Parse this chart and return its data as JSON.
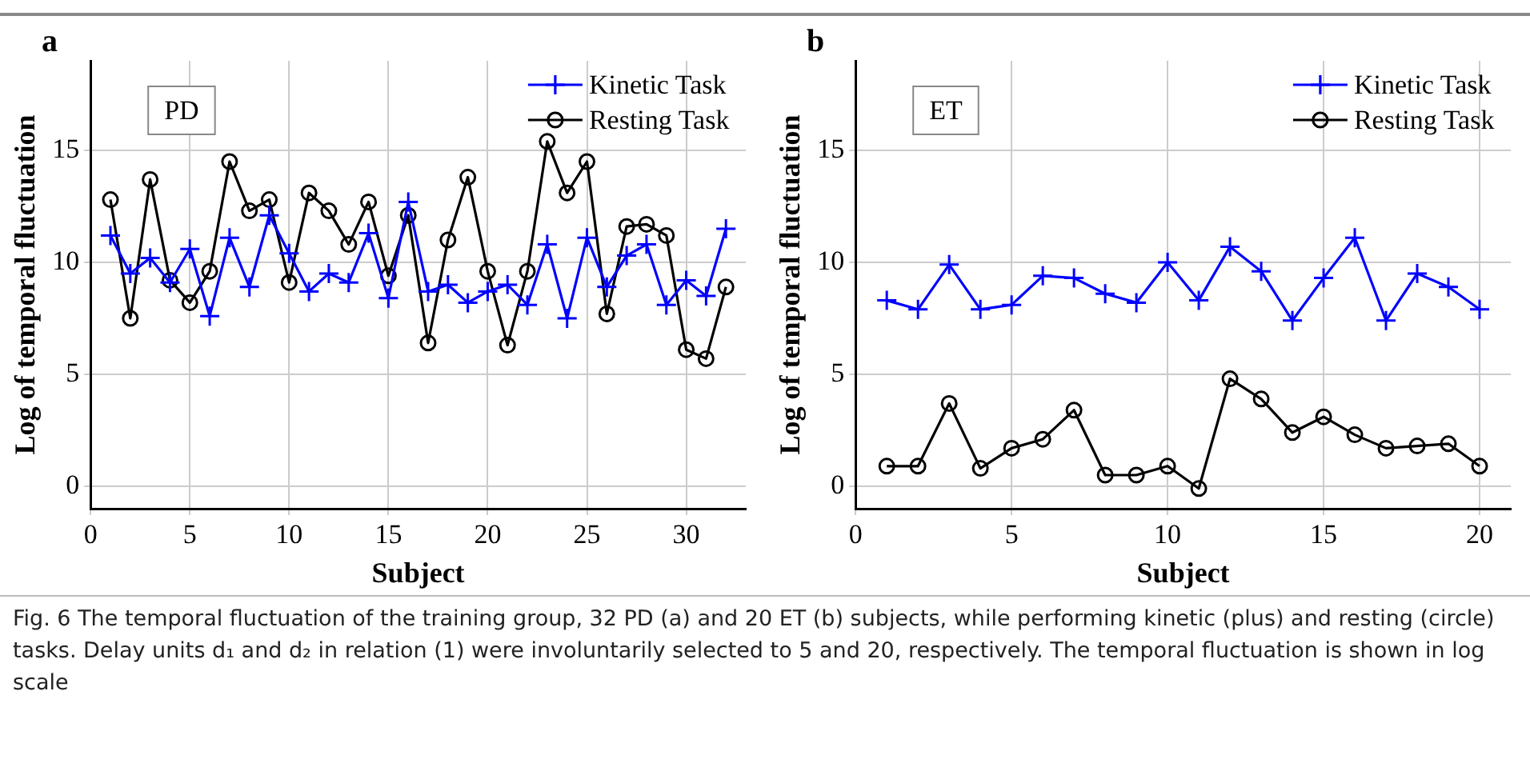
{
  "chart_data": [
    {
      "type": "line",
      "title": "a",
      "xlabel": "Subject",
      "ylabel": "Log of temporal fluctuation",
      "annotations": [
        "PD"
      ],
      "x": [
        1,
        2,
        3,
        4,
        5,
        6,
        7,
        8,
        9,
        10,
        11,
        12,
        13,
        14,
        15,
        16,
        17,
        18,
        19,
        20,
        21,
        22,
        23,
        24,
        25,
        26,
        27,
        28,
        29,
        30,
        31,
        32
      ],
      "series": [
        {
          "name": "Kinetic Task",
          "color": "#0000ff",
          "marker": "cross",
          "values": [
            11.2,
            9.5,
            10.2,
            9.1,
            10.6,
            7.6,
            11.1,
            8.9,
            12.1,
            10.4,
            8.7,
            9.5,
            9.1,
            11.3,
            8.4,
            12.7,
            8.7,
            9.0,
            8.2,
            8.7,
            9.0,
            8.1,
            10.8,
            7.5,
            11.1,
            8.9,
            10.3,
            10.8,
            8.1,
            9.2,
            8.5,
            11.5
          ]
        },
        {
          "name": "Resting Task",
          "color": "#000000",
          "marker": "circle",
          "values": [
            12.8,
            7.5,
            13.7,
            9.2,
            8.2,
            9.6,
            14.5,
            12.3,
            12.8,
            9.1,
            13.1,
            12.3,
            10.8,
            12.7,
            9.4,
            12.1,
            6.4,
            11.0,
            13.8,
            9.6,
            6.3,
            9.6,
            15.4,
            13.1,
            14.5,
            7.7,
            11.6,
            11.7,
            11.2,
            6.1,
            5.7,
            8.9
          ]
        }
      ],
      "xlim": [
        0,
        33
      ],
      "xticks": [
        0,
        5,
        10,
        15,
        20,
        25,
        30
      ],
      "ylim": [
        -1,
        19
      ],
      "yticks": [
        0,
        5,
        10,
        15
      ],
      "grid": true,
      "legend": "top right"
    },
    {
      "type": "line",
      "title": "b",
      "xlabel": "Subject",
      "ylabel": "Log of temporal fluctuation",
      "annotations": [
        "ET"
      ],
      "x": [
        1,
        2,
        3,
        4,
        5,
        6,
        7,
        8,
        9,
        10,
        11,
        12,
        13,
        14,
        15,
        16,
        17,
        18,
        19,
        20
      ],
      "series": [
        {
          "name": "Kinetic Task",
          "color": "#0000ff",
          "marker": "cross",
          "values": [
            8.3,
            7.9,
            9.9,
            7.9,
            8.1,
            9.4,
            9.3,
            8.6,
            8.2,
            10.0,
            8.3,
            10.7,
            9.6,
            7.4,
            9.3,
            11.1,
            7.4,
            9.5,
            8.9,
            7.9
          ]
        },
        {
          "name": "Resting Task",
          "color": "#000000",
          "marker": "circle",
          "values": [
            0.9,
            0.9,
            3.7,
            0.8,
            1.7,
            2.1,
            3.4,
            0.5,
            0.5,
            0.9,
            -0.1,
            4.8,
            3.9,
            2.4,
            3.1,
            2.3,
            1.7,
            1.8,
            1.9,
            0.9
          ]
        }
      ],
      "xlim": [
        0,
        21
      ],
      "xticks": [
        0,
        5,
        10,
        15,
        20
      ],
      "ylim": [
        -1,
        19
      ],
      "yticks": [
        0,
        5,
        10,
        15
      ],
      "grid": true,
      "legend": "top right"
    },
    {
      "type": "other",
      "annotations": [
        "Fig. 6  The temporal fluctuation of the training group, 32 PD (a) and 20 ET (b) subjects, while performing kinetic (plus) and resting (circle) tasks. Delay units d₁ and d₂ in relation (1) were involuntarily selected to 5 and 20, respectively. The temporal fluctuation is shown in log scale"
      ]
    }
  ]
}
